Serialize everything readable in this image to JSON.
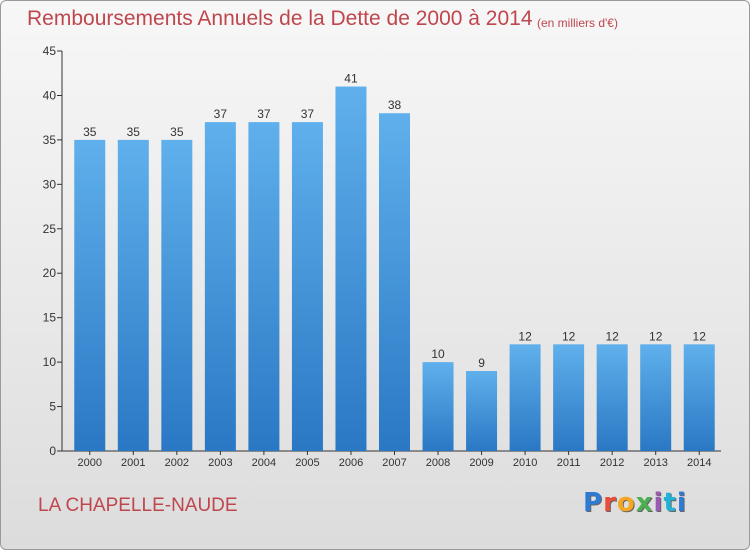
{
  "chart_data": {
    "type": "bar",
    "title": "Remboursements Annuels de la Dette de 2000 à 2014",
    "subtitle": "(en milliers d'€)",
    "categories": [
      "2000",
      "2001",
      "2002",
      "2003",
      "2004",
      "2005",
      "2006",
      "2007",
      "2008",
      "2009",
      "2010",
      "2011",
      "2012",
      "2013",
      "2014"
    ],
    "values": [
      35,
      35,
      35,
      37,
      37,
      37,
      41,
      38,
      10,
      9,
      12,
      12,
      12,
      12,
      12
    ],
    "xlabel": "",
    "ylabel": "",
    "ylim": [
      0,
      45
    ],
    "yticks": [
      0,
      5,
      10,
      15,
      20,
      25,
      30,
      35,
      40,
      45
    ],
    "grid": false,
    "bar_color": "#3f93d9"
  },
  "footer": {
    "commune": "LA CHAPELLE-NAUDE",
    "logo": "Proxiti"
  },
  "colors": {
    "title": "#c0464e",
    "bar_top": "#5fb0ec",
    "bar_bottom": "#2a78c4"
  }
}
